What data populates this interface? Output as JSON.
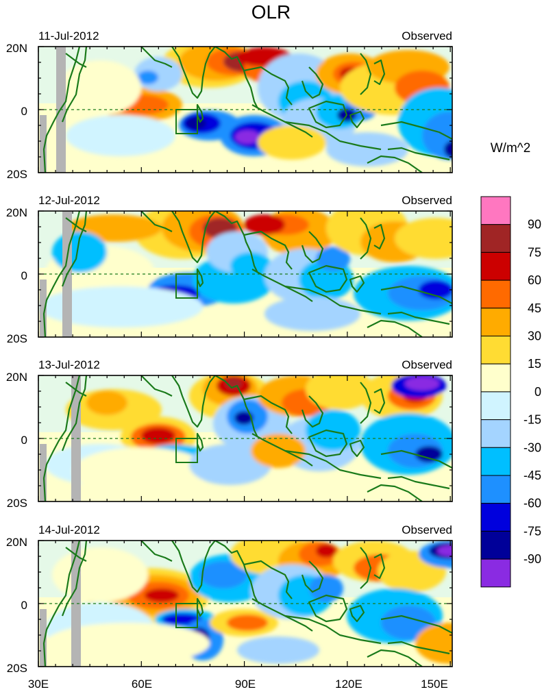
{
  "title": "OLR",
  "units": "W/m^2",
  "panels": [
    {
      "date": "11-Jul-2012",
      "label": "Observed"
    },
    {
      "date": "12-Jul-2012",
      "label": "Observed"
    },
    {
      "date": "13-Jul-2012",
      "label": "Observed"
    },
    {
      "date": "14-Jul-2012",
      "label": "Observed"
    }
  ],
  "lat_labels": [
    "20N",
    "0",
    "20S"
  ],
  "lon_labels": [
    "30E",
    "60E",
    "90E",
    "120E",
    "150E"
  ],
  "colorbar": {
    "labels": [
      "90",
      "75",
      "60",
      "45",
      "30",
      "15",
      "0",
      "-15",
      "-30",
      "-45",
      "-60",
      "-75",
      "-90"
    ],
    "colors": [
      "#ff77c0",
      "#a02525",
      "#cc0000",
      "#ff6a00",
      "#ffab00",
      "#ffdc33",
      "#ffffcc",
      "#d0f4ff",
      "#a4d4ff",
      "#00bfff",
      "#1e90ff",
      "#0000dd",
      "#000099",
      "#8a2be2"
    ]
  },
  "colors": {
    "coast": "#1a7a1a",
    "land_missing": "#b4b4b4"
  }
}
